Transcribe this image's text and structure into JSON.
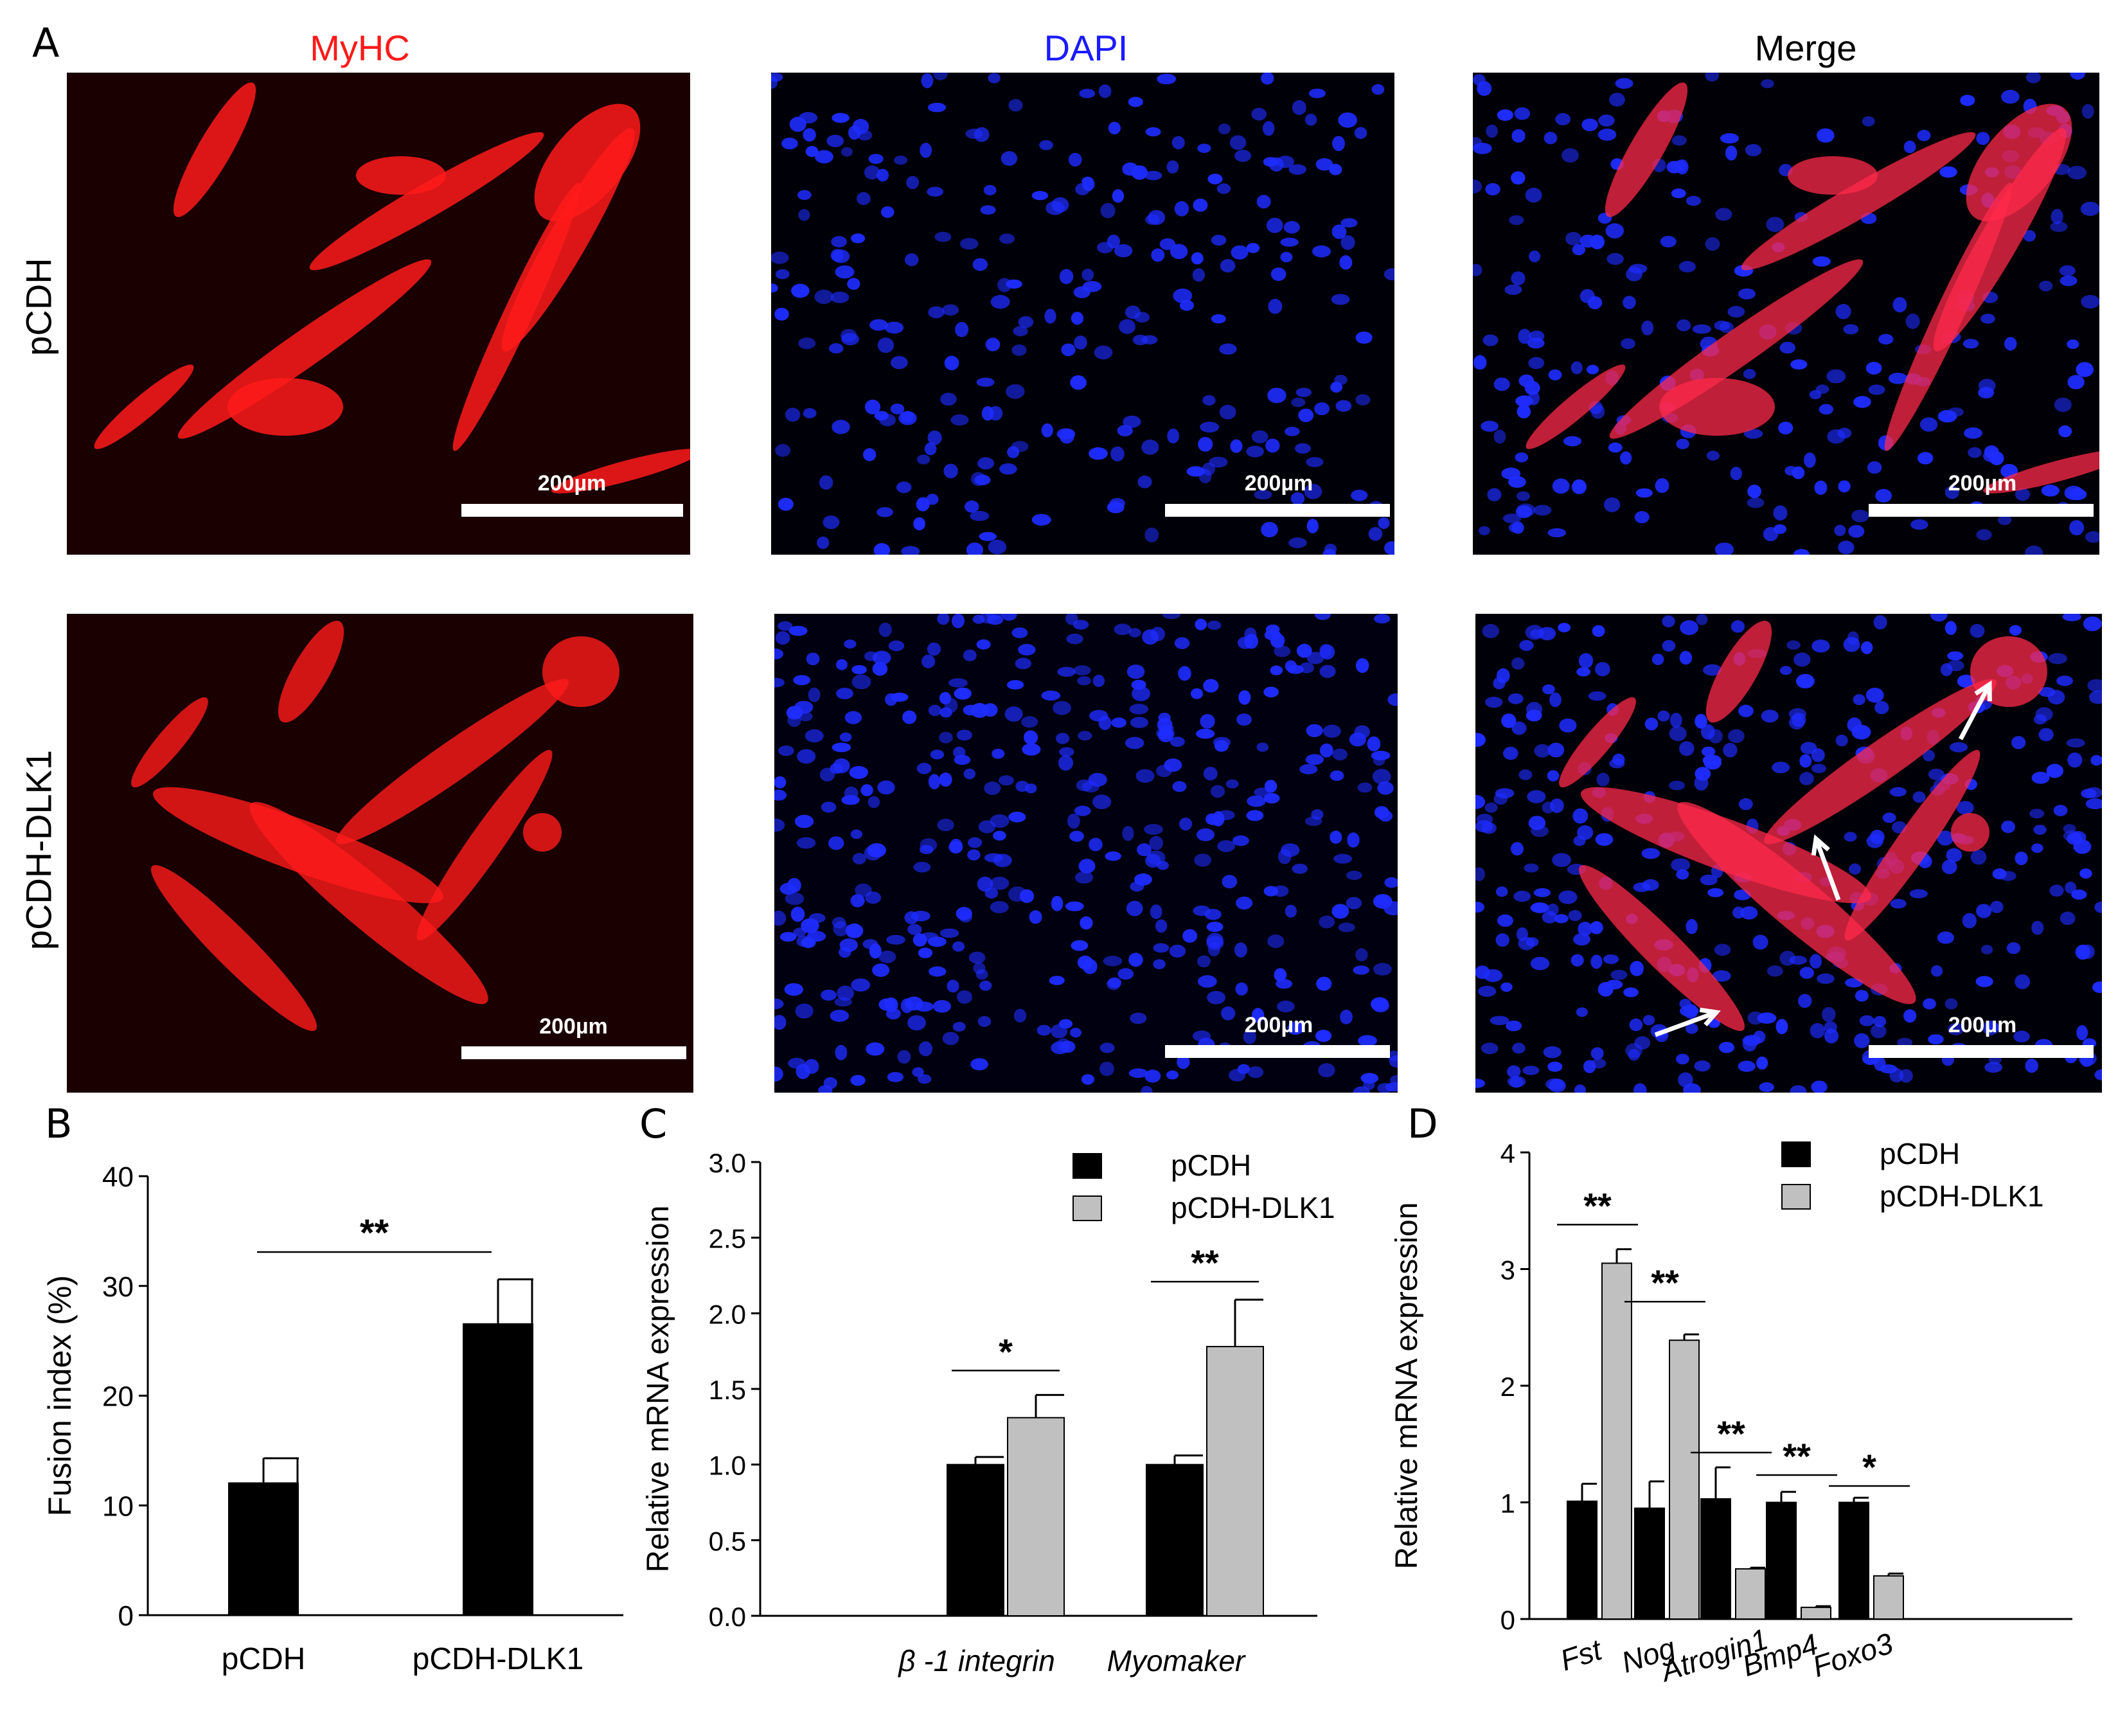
{
  "panel_labels": {
    "a": "A",
    "b": "B",
    "c": "C",
    "d": "D"
  },
  "columns": {
    "myhc": "MyHC",
    "dapi": "DAPI",
    "merge": "Merge"
  },
  "rows": {
    "top": "pCDH",
    "bottom": "pCDH-DLK1"
  },
  "scale_bar": "200µm",
  "colors": {
    "myhc": "#ff1a1a",
    "dapi": "#1a1aff",
    "merge": "#000000",
    "pcdh": "#000000",
    "dlk1": "#c0c0c0"
  },
  "chart_data": [
    {
      "panel": "B",
      "type": "bar",
      "ylabel": "Fusion index (%)",
      "ylim": [
        0,
        40
      ],
      "yticks": [
        "0",
        "10",
        "20",
        "30",
        "40"
      ],
      "categories": [
        "pCDH",
        "pCDH-DLK1"
      ],
      "values": [
        12.1,
        26.6
      ],
      "errors": [
        2.2,
        4.0
      ],
      "significance": [
        {
          "between": [
            0,
            1
          ],
          "label": "**"
        }
      ]
    },
    {
      "panel": "C",
      "type": "bar",
      "ylabel": "Relative mRNA expression",
      "ylim": [
        0,
        3.0
      ],
      "yticks": [
        "0.0",
        "0.5",
        "1.0",
        "1.5",
        "2.0",
        "2.5",
        "3.0"
      ],
      "categories": [
        "β -1 integrin",
        "Myomaker"
      ],
      "series": [
        {
          "name": "pCDH",
          "values": [
            1.0,
            1.0
          ],
          "errors": [
            0.05,
            0.06
          ]
        },
        {
          "name": "pCDH-DLK1",
          "values": [
            1.31,
            1.78
          ],
          "errors": [
            0.15,
            0.31
          ]
        }
      ],
      "significance": [
        "*",
        "**"
      ],
      "legend": "top-right"
    },
    {
      "panel": "D",
      "type": "bar",
      "ylabel": "Relative mRNA expression",
      "ylim": [
        0,
        4
      ],
      "yticks": [
        "0",
        "1",
        "2",
        "3",
        "4"
      ],
      "categories": [
        "Fst",
        "Nog",
        "Atrogin1",
        "Bmp4",
        "Foxo3"
      ],
      "series": [
        {
          "name": "pCDH",
          "values": [
            1.01,
            0.95,
            1.03,
            1.0,
            1.0
          ],
          "errors": [
            0.15,
            0.23,
            0.27,
            0.09,
            0.04
          ]
        },
        {
          "name": "pCDH-DLK1",
          "values": [
            3.05,
            2.39,
            0.43,
            0.1,
            0.37
          ],
          "errors": [
            0.12,
            0.05,
            0.01,
            0.01,
            0.02
          ]
        }
      ],
      "significance": [
        "**",
        "**",
        "**",
        "**",
        "*"
      ],
      "legend": "top-right"
    }
  ]
}
